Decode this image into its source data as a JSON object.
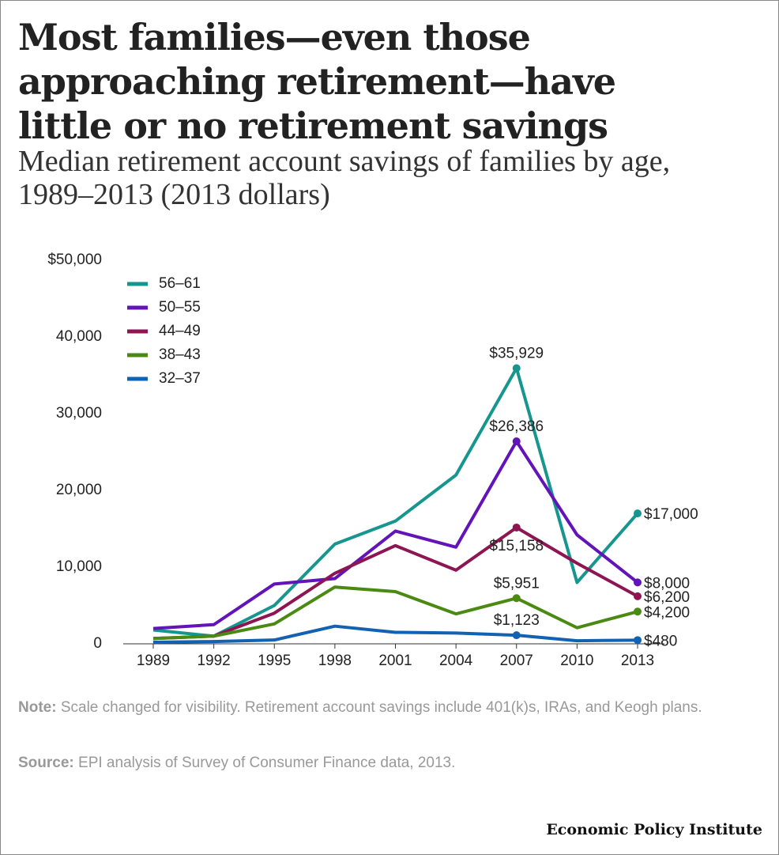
{
  "chart_data": {
    "type": "line",
    "title": "Most families—even those approaching retirement—have little or no retirement savings",
    "subtitle": "Median retirement account savings of families by age, 1989–2013 (2013 dollars)",
    "x": [
      1989,
      1992,
      1995,
      1998,
      2001,
      2004,
      2007,
      2010,
      2013
    ],
    "xlim": [
      1989,
      2013
    ],
    "ylim": [
      0,
      50000
    ],
    "yticks": [
      0,
      {
        "value": 10000,
        "label": "10,000"
      },
      {
        "value": 20000,
        "label": "20,000"
      },
      {
        "value": 30000,
        "label": "30,000"
      },
      {
        "value": 40000,
        "label": "40,000"
      },
      {
        "value": 50000,
        "label": "$50,000"
      }
    ],
    "legend": "upper left",
    "series": [
      {
        "name": "56–61",
        "color": "#16968f",
        "values": [
          1800,
          1000,
          5000,
          13000,
          16000,
          22000,
          35929,
          8000,
          17000
        ],
        "value_labels": [
          null,
          null,
          null,
          null,
          null,
          null,
          "$35,929",
          null,
          "$17,000"
        ]
      },
      {
        "name": "50–55",
        "color": "#6314b8",
        "values": [
          2000,
          2500,
          7800,
          8500,
          14700,
          12600,
          26386,
          14200,
          8000
        ],
        "value_labels": [
          null,
          null,
          null,
          null,
          null,
          null,
          "$26,386",
          null,
          "$8,000"
        ]
      },
      {
        "name": "44–49",
        "color": "#8c1552",
        "values": [
          700,
          1000,
          4000,
          9200,
          12800,
          9600,
          15158,
          10500,
          6200
        ],
        "value_labels": [
          null,
          null,
          null,
          null,
          null,
          null,
          "$15,158",
          null,
          "$6,200"
        ]
      },
      {
        "name": "38–43",
        "color": "#4b8a12",
        "values": [
          700,
          1000,
          2600,
          7400,
          6800,
          3900,
          5951,
          2100,
          4200
        ],
        "value_labels": [
          null,
          null,
          null,
          null,
          null,
          null,
          "$5,951",
          null,
          "$4,200"
        ]
      },
      {
        "name": "32–37",
        "color": "#1262b3",
        "values": [
          200,
          300,
          500,
          2300,
          1500,
          1400,
          1123,
          400,
          480
        ],
        "value_labels": [
          null,
          null,
          null,
          null,
          null,
          null,
          "$1,123",
          null,
          "$480"
        ]
      }
    ]
  },
  "note": {
    "label": "Note:",
    "text": "Scale changed for visibility. Retirement account savings include 401(k)s, IRAs, and Keogh plans."
  },
  "source": {
    "label": "Source:",
    "text": "EPI analysis of  Survey of Consumer Finance data, 2013."
  },
  "footer": "Economic Policy Institute"
}
